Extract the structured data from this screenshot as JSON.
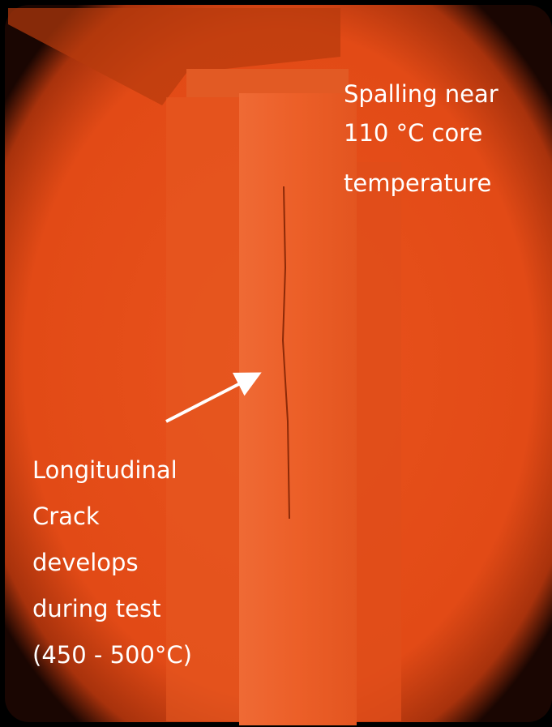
{
  "annotations": [
    {
      "lines": [
        "Spalling near",
        "110 °C core",
        "temperature"
      ]
    },
    {
      "lines": [
        "Longitudinal",
        "Crack",
        "develops",
        "during test",
        "(450 - 500°C)"
      ]
    }
  ]
}
